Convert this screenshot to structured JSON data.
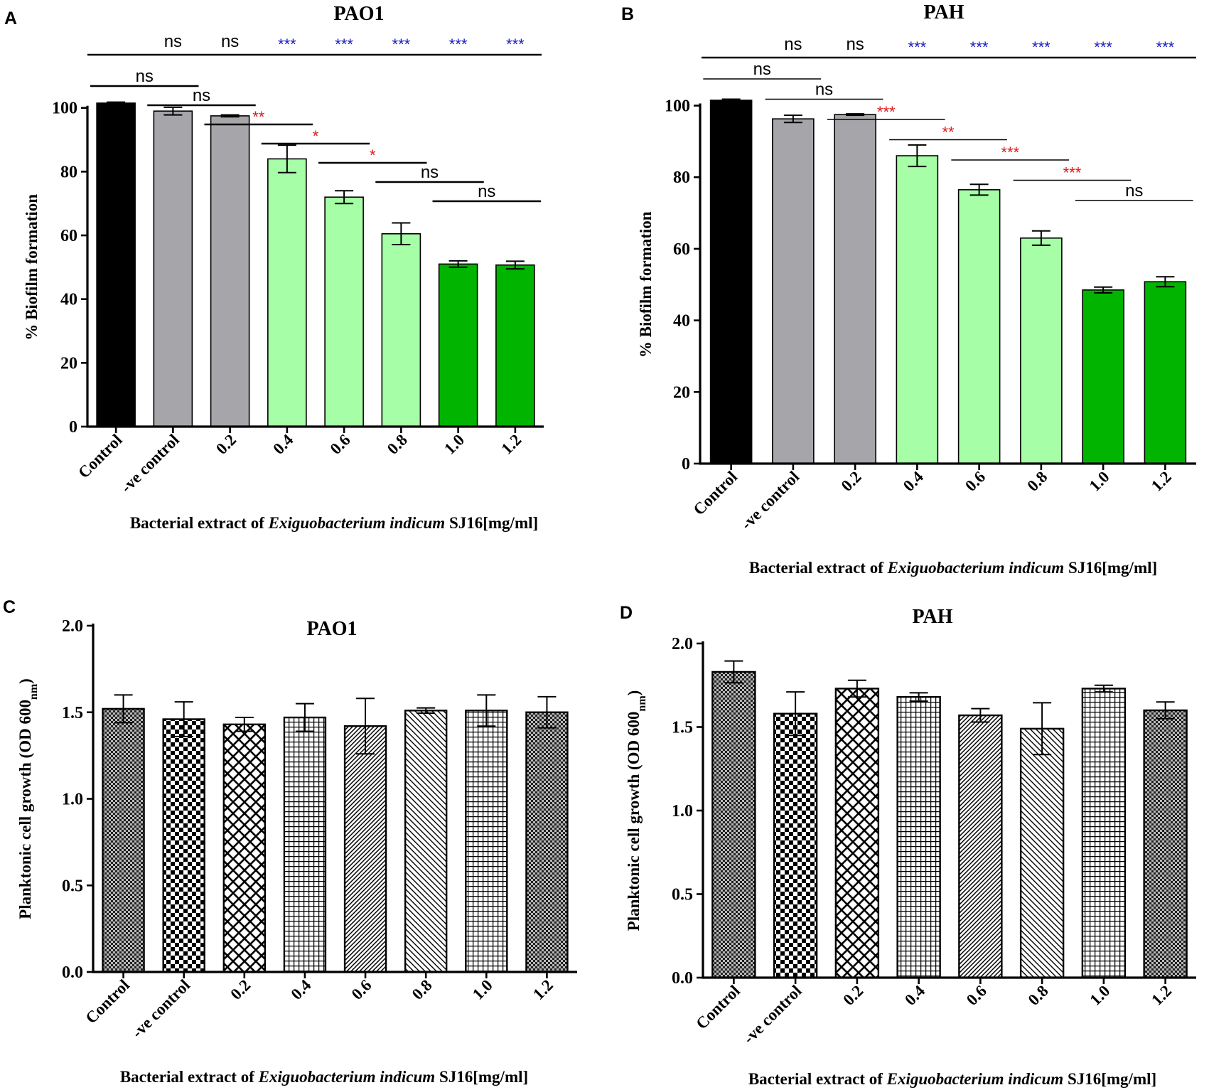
{
  "figure": {
    "bar_colors": {
      "control": "#000000",
      "neg_control": "#a6a6aa",
      "low": "#a6ffa6",
      "high": "#00b400",
      "sig_black": "#000000",
      "sig_blue": "#1a1acc",
      "sig_red": "#e01818"
    }
  },
  "chart_data": [
    {
      "panel": "A",
      "type": "bar",
      "title": "PAO1",
      "categories": [
        "Control",
        "-ve control",
        "0.2",
        "0.4",
        "0.6",
        "0.8",
        "1.0",
        "1.2"
      ],
      "values": [
        101.5,
        99,
        97.5,
        84,
        72,
        60.5,
        51,
        50.7
      ],
      "errors": [
        0.3,
        1.2,
        0.3,
        4.3,
        2,
        3.4,
        1,
        1.2
      ],
      "fills": [
        "control",
        "neg_control",
        "neg_control",
        "low",
        "low",
        "low",
        "high",
        "high"
      ],
      "ylabel": "% Biofilm formation",
      "xlabel_parts": [
        "Bacterial extract of ",
        "Exiguobacterium indicum",
        " SJ16[mg/ml]"
      ],
      "ylim": [
        0,
        100
      ],
      "yticks": [
        "0",
        "20",
        "40",
        "60",
        "80",
        "100"
      ],
      "significance": {
        "top_labels": [
          "ns",
          "ns",
          "***",
          "***",
          "***",
          "***",
          "***"
        ],
        "top_colors": [
          "sig_black",
          "sig_black",
          "sig_blue",
          "sig_blue",
          "sig_blue",
          "sig_blue",
          "sig_blue"
        ],
        "pairs": [
          {
            "from": 0,
            "to": 1,
            "label": "ns",
            "color": "sig_black"
          },
          {
            "from": 1,
            "to": 2,
            "label": "ns",
            "color": "sig_black"
          },
          {
            "from": 2,
            "to": 3,
            "label": "**",
            "color": "sig_red"
          },
          {
            "from": 3,
            "to": 4,
            "label": "*",
            "color": "sig_red"
          },
          {
            "from": 4,
            "to": 5,
            "label": "*",
            "color": "sig_red"
          },
          {
            "from": 5,
            "to": 6,
            "label": "ns",
            "color": "sig_black"
          },
          {
            "from": 6,
            "to": 7,
            "label": "ns",
            "color": "sig_black"
          }
        ]
      }
    },
    {
      "panel": "B",
      "type": "bar",
      "title": "PAH",
      "categories": [
        "Control",
        "-ve control",
        "0.2",
        "0.4",
        "0.6",
        "0.8",
        "1.0",
        "1.2"
      ],
      "values": [
        101.5,
        96.3,
        97.5,
        86,
        76.5,
        63,
        48.5,
        50.8
      ],
      "errors": [
        0.3,
        1,
        0.2,
        3,
        1.5,
        2,
        0.8,
        1.4
      ],
      "fills": [
        "control",
        "neg_control",
        "neg_control",
        "low",
        "low",
        "low",
        "high",
        "high"
      ],
      "ylabel": "% Biofilm formation",
      "xlabel_parts": [
        "Bacterial extract of ",
        "Exiguobacterium indicum",
        " SJ16[mg/ml]"
      ],
      "ylim": [
        0,
        100
      ],
      "yticks": [
        "0",
        "20",
        "40",
        "60",
        "80",
        "100"
      ],
      "significance": {
        "top_labels": [
          "ns",
          "ns",
          "***",
          "***",
          "***",
          "***",
          "***"
        ],
        "top_colors": [
          "sig_black",
          "sig_black",
          "sig_blue",
          "sig_blue",
          "sig_blue",
          "sig_blue",
          "sig_blue"
        ],
        "pairs": [
          {
            "from": 0,
            "to": 1,
            "label": "ns",
            "color": "sig_black"
          },
          {
            "from": 1,
            "to": 2,
            "label": "ns",
            "color": "sig_black"
          },
          {
            "from": 2,
            "to": 3,
            "label": "***",
            "color": "sig_red"
          },
          {
            "from": 3,
            "to": 4,
            "label": "**",
            "color": "sig_red"
          },
          {
            "from": 4,
            "to": 5,
            "label": "***",
            "color": "sig_red"
          },
          {
            "from": 5,
            "to": 6,
            "label": "***",
            "color": "sig_red"
          },
          {
            "from": 6,
            "to": 7,
            "label": "ns",
            "color": "sig_black"
          }
        ]
      }
    },
    {
      "panel": "C",
      "type": "bar",
      "title": "PAO1",
      "categories": [
        "Control",
        "-ve control",
        "0.2",
        "0.4",
        "0.6",
        "0.8",
        "1.0",
        "1.2"
      ],
      "values": [
        1.52,
        1.46,
        1.43,
        1.47,
        1.42,
        1.51,
        1.51,
        1.5
      ],
      "errors": [
        0.08,
        0.1,
        0.04,
        0.08,
        0.16,
        0.015,
        0.09,
        0.09
      ],
      "patterns": [
        "fine-check",
        "checker",
        "crosshatch",
        "grid",
        "diag-fine",
        "diag",
        "grid",
        "fine-check"
      ],
      "ylabel": "Planktonic cell growth (OD 600",
      "ylabel_sub": "nm",
      "ylabel_end": ")",
      "xlabel_parts": [
        "Bacterial extract of ",
        "Exiguobacterium indicum",
        " SJ16[mg/ml]"
      ],
      "ylim": [
        0,
        2
      ],
      "yticks": [
        "0.0",
        "0.5",
        "1.0",
        "1.5",
        "2.0"
      ]
    },
    {
      "panel": "D",
      "type": "bar",
      "title": "PAH",
      "categories": [
        "Control",
        "-ve control",
        "0.2",
        "0.4",
        "0.6",
        "0.8",
        "1.0",
        "1.2"
      ],
      "values": [
        1.83,
        1.58,
        1.73,
        1.68,
        1.57,
        1.49,
        1.73,
        1.6
      ],
      "errors": [
        0.065,
        0.13,
        0.05,
        0.025,
        0.04,
        0.155,
        0.02,
        0.05
      ],
      "patterns": [
        "fine-check",
        "checker",
        "crosshatch",
        "grid",
        "diag-fine",
        "diag",
        "grid",
        "fine-check"
      ],
      "ylabel": "Planktonic cell growth (OD 600",
      "ylabel_sub": "nm",
      "ylabel_end": ")",
      "xlabel_parts": [
        "Bacterial extract of ",
        "Exiguobacterium indicum",
        " SJ16[mg/ml]"
      ],
      "ylim": [
        0,
        2
      ],
      "yticks": [
        "0.0",
        "0.5",
        "1.0",
        "1.5",
        "2.0"
      ]
    }
  ]
}
